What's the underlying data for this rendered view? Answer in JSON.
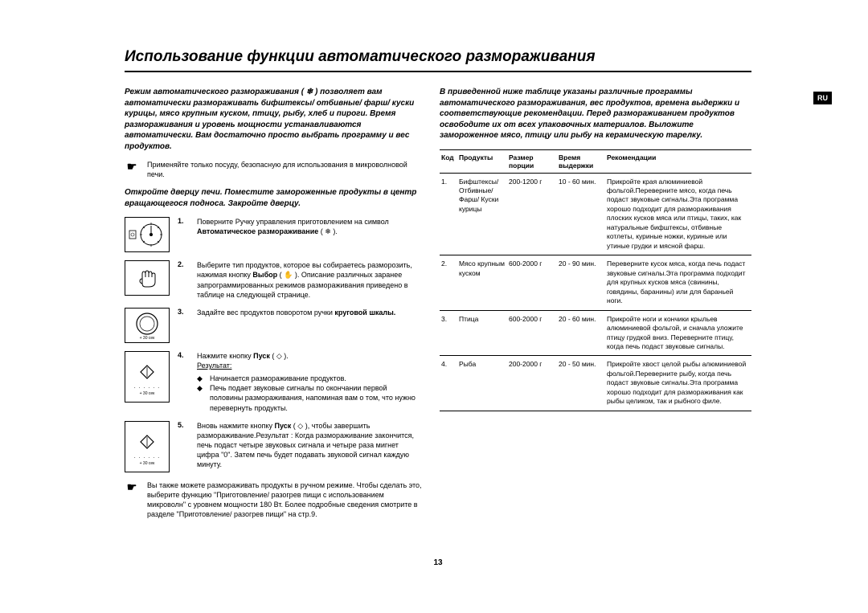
{
  "lang_tab": "RU",
  "title": "Использование функции автоматического размораживания",
  "intro_left": "Режим автоматического размораживания ( ❄ ) позволяет вам автоматически размораживать бифштексы/ отбивные/ фарш/ куски курицы, мясо крупным куском, птицу, рыбу, хлеб и пироги. Время размораживания и уровень мощности устанавливаются автоматически. Вам достаточно просто выбрать программу и вес продуктов.",
  "pointer1": "Применяйте только посуду, безопасную для использования в микроволновой печи.",
  "subhead_left": "Откройте дверцу печи. Поместите замороженные продукты в центр вращающегося подноса. Закройте дверцу.",
  "steps": [
    {
      "n": "1.",
      "text": "Поверните Ручку управления приготовлением на символ <b>Автоматическое размораживание</b> ( ❄ )."
    },
    {
      "n": "2.",
      "text": "Выберите тип продуктов, которое вы собираетесь разморозить, нажимая кнопку <b>Выбор</b> ( ✋ ). Описание различных заранее запрограммированных режимов размораживания приведено в таблице на следующей странице."
    },
    {
      "n": "3.",
      "text": "Задайте вес продуктов поворотом ручки <b>круговой шкалы.</b>"
    },
    {
      "n": "4.",
      "text_pre": "Нажмите кнопку <b>Пуск</b> ( ◇ ).",
      "result_label": "Результат:",
      "bullets": [
        "Начинается размораживание продуктов.",
        "Печь подает звуковые сигналы по окончании первой половины размораживания, напоминая вам о том, что нужно перевернуть продукты."
      ]
    },
    {
      "n": "5.",
      "text": "Вновь нажмите кнопку <b>Пуск</b> ( ◇ ), чтобы завершить размораживание.Результат : Когда размораживание закончится, печь подаст четыре звуковых сигнала и четыре раза мигнет цифра \"0\". Затем печь будет подавать звуковой сигнал каждую минуту."
    }
  ],
  "pointer2": "Вы также можете размораживать продукты в ручном режиме. Чтобы сделать это, выберите функцию \"Приготовление/ разогрев пищи с использованием микроволн\" с уровнем мощности 180 Вт. Более подробные сведения смотрите в разделе \"Приготовление/ разогрев пищи\" на стр.9.",
  "intro_right": "В приведенной ниже таблице указаны различные программы автоматического размораживания, вес продуктов, времена выдержки и соответствующие рекомендации. Перед размораживанием продуктов освободите их от всех упаковочных материалов. Выложите замороженное мясо, птицу или рыбу на керамическую тарелку.",
  "table": {
    "headers": [
      "Код",
      "Продукты",
      "Размер порции",
      "Время выдержки",
      "Рекомендации"
    ],
    "rows": [
      {
        "code": "1.",
        "prod": "Бифштексы/ Отбивные/ Фарш/ Куски курицы",
        "size": "200-1200 г",
        "time": "10 - 60 мин.",
        "rec": "Прикройте края алюминиевой фольгой.Переверните мясо, когда печь подаст звуковые сигналы.Эта программа хорошо подходит для размораживания плоских кусков мяса или птицы, таких, как натуральные бифштексы, отбивные котлеты, куриные ножки, куриные или утиные грудки и мясной фарш."
      },
      {
        "code": "2.",
        "prod": "Мясо крупным куском",
        "size": "600-2000 г",
        "time": "20 - 90 мин.",
        "rec": "Переверните кусок мяса, когда печь подаст звуковые сигналы.Эта программа подходит для крупных кусков мяса (свинины, говядины, баранины) или для бараньей ноги."
      },
      {
        "code": "3.",
        "prod": "Птица",
        "size": "600-2000 г",
        "time": "20 - 60 мин.",
        "rec": "Прикройте ноги и кончики крыльев алюминиевой фольгой, и сначала уложите птицу грудкой вниз. Переверните птицу, когда печь подаст звуковые сигналы."
      },
      {
        "code": "4.",
        "prod": "Рыба",
        "size": "200-2000 г",
        "time": "20 - 50 мин.",
        "rec": "Прикройте хвост целой рыбы алюминиевой фольгой.Переверните рыбу, когда печь подаст звуковые сигналы.Эта программа хорошо подходит для размораживания как рыбы целиком, так и рыбного филе."
      }
    ]
  },
  "page_number": "13",
  "icon_plus30": "+ 30 сек"
}
